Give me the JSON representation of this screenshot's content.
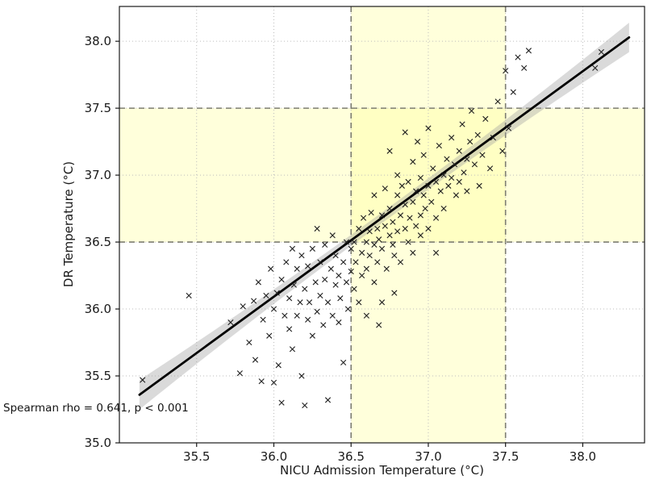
{
  "chart_data": {
    "type": "scatter",
    "title": "",
    "xlabel": "NICU Admission Temperature (°C)",
    "ylabel": "DR Temperature (°C)",
    "annotation": "Spearman rho = 0.641, p < 0.001",
    "spearman_rho": 0.641,
    "p_value": "< 0.001",
    "xlim": [
      35.0,
      38.4
    ],
    "ylim": [
      35.0,
      38.26
    ],
    "xticks": [
      35.5,
      36.0,
      36.5,
      37.0,
      37.5,
      38.0
    ],
    "yticks": [
      35.0,
      35.5,
      36.0,
      36.5,
      37.0,
      37.5,
      38.0
    ],
    "grid": true,
    "normothermia_band": {
      "x": [
        36.5,
        37.5
      ],
      "y": [
        36.5,
        37.5
      ],
      "color": "#ffff99",
      "opacity": 0.35
    },
    "threshold_lines": {
      "x": [
        36.5,
        37.5
      ],
      "y": [
        36.5,
        37.5
      ],
      "color": "#7d7d72"
    },
    "regression": {
      "slope": 0.842,
      "intercept": 5.78,
      "x_range": [
        35.13,
        38.3
      ],
      "line_color": "#000000",
      "ci_color": "#9e9e9e",
      "ci_half_width_center": 0.04,
      "ci_half_width_edge": 0.11
    },
    "marker": {
      "shape": "x",
      "color": "#1f1f1f"
    },
    "points": [
      [
        35.15,
        35.47
      ],
      [
        35.45,
        36.1
      ],
      [
        35.72,
        35.9
      ],
      [
        35.78,
        35.52
      ],
      [
        35.8,
        36.02
      ],
      [
        35.84,
        35.75
      ],
      [
        35.87,
        36.06
      ],
      [
        35.88,
        35.62
      ],
      [
        35.9,
        36.2
      ],
      [
        35.92,
        35.46
      ],
      [
        35.93,
        35.92
      ],
      [
        35.95,
        36.1
      ],
      [
        35.97,
        35.8
      ],
      [
        35.98,
        36.3
      ],
      [
        36.0,
        35.45
      ],
      [
        36.0,
        36.0
      ],
      [
        36.02,
        36.12
      ],
      [
        36.03,
        35.58
      ],
      [
        36.05,
        35.3
      ],
      [
        36.05,
        36.22
      ],
      [
        36.07,
        35.95
      ],
      [
        36.08,
        36.35
      ],
      [
        36.1,
        35.85
      ],
      [
        36.1,
        36.08
      ],
      [
        36.12,
        36.45
      ],
      [
        36.12,
        35.7
      ],
      [
        36.13,
        36.18
      ],
      [
        36.15,
        35.95
      ],
      [
        36.15,
        36.3
      ],
      [
        36.17,
        36.05
      ],
      [
        36.18,
        35.5
      ],
      [
        36.18,
        36.4
      ],
      [
        36.2,
        35.28
      ],
      [
        36.2,
        36.15
      ],
      [
        36.22,
        35.92
      ],
      [
        36.22,
        36.32
      ],
      [
        36.23,
        36.05
      ],
      [
        36.25,
        36.45
      ],
      [
        36.25,
        35.8
      ],
      [
        36.27,
        36.2
      ],
      [
        36.28,
        35.98
      ],
      [
        36.28,
        36.6
      ],
      [
        36.3,
        36.1
      ],
      [
        36.3,
        36.35
      ],
      [
        36.32,
        35.88
      ],
      [
        36.33,
        36.22
      ],
      [
        36.33,
        36.48
      ],
      [
        36.35,
        35.32
      ],
      [
        36.35,
        36.05
      ],
      [
        36.37,
        36.3
      ],
      [
        36.38,
        35.95
      ],
      [
        36.38,
        36.55
      ],
      [
        36.4,
        36.18
      ],
      [
        36.4,
        36.4
      ],
      [
        36.42,
        35.9
      ],
      [
        36.42,
        36.25
      ],
      [
        36.43,
        36.08
      ],
      [
        36.45,
        36.35
      ],
      [
        36.45,
        35.6
      ],
      [
        36.47,
        36.2
      ],
      [
        36.47,
        36.5
      ],
      [
        36.48,
        36.0
      ],
      [
        36.5,
        36.28
      ],
      [
        36.5,
        36.45
      ],
      [
        36.52,
        36.15
      ],
      [
        36.52,
        36.5
      ],
      [
        36.53,
        36.35
      ],
      [
        36.55,
        36.6
      ],
      [
        36.55,
        36.05
      ],
      [
        36.57,
        36.42
      ],
      [
        36.57,
        36.25
      ],
      [
        36.58,
        36.68
      ],
      [
        36.6,
        36.5
      ],
      [
        36.6,
        35.95
      ],
      [
        36.6,
        36.3
      ],
      [
        36.62,
        36.58
      ],
      [
        36.62,
        36.4
      ],
      [
        36.63,
        36.72
      ],
      [
        36.65,
        36.2
      ],
      [
        36.65,
        36.48
      ],
      [
        36.65,
        36.85
      ],
      [
        36.67,
        36.6
      ],
      [
        36.67,
        36.35
      ],
      [
        36.68,
        35.88
      ],
      [
        36.68,
        36.52
      ],
      [
        36.7,
        36.05
      ],
      [
        36.7,
        36.7
      ],
      [
        36.7,
        36.45
      ],
      [
        36.72,
        36.62
      ],
      [
        36.72,
        36.9
      ],
      [
        36.73,
        36.3
      ],
      [
        36.75,
        36.55
      ],
      [
        36.75,
        36.75
      ],
      [
        36.75,
        37.18
      ],
      [
        36.77,
        36.48
      ],
      [
        36.77,
        36.65
      ],
      [
        36.78,
        36.12
      ],
      [
        36.78,
        36.4
      ],
      [
        36.8,
        36.85
      ],
      [
        36.8,
        36.58
      ],
      [
        36.8,
        37.0
      ],
      [
        36.82,
        36.7
      ],
      [
        36.82,
        36.35
      ],
      [
        36.83,
        36.92
      ],
      [
        36.85,
        36.6
      ],
      [
        36.85,
        36.78
      ],
      [
        36.85,
        37.32
      ],
      [
        36.87,
        36.5
      ],
      [
        36.87,
        36.95
      ],
      [
        36.88,
        36.68
      ],
      [
        36.9,
        36.8
      ],
      [
        36.9,
        36.42
      ],
      [
        36.9,
        37.1
      ],
      [
        36.92,
        36.62
      ],
      [
        36.92,
        36.88
      ],
      [
        36.93,
        37.25
      ],
      [
        36.95,
        36.7
      ],
      [
        36.95,
        36.98
      ],
      [
        36.95,
        36.55
      ],
      [
        36.97,
        36.85
      ],
      [
        36.97,
        37.15
      ],
      [
        36.98,
        36.75
      ],
      [
        37.0,
        36.92
      ],
      [
        37.0,
        36.6
      ],
      [
        37.0,
        37.35
      ],
      [
        37.02,
        36.8
      ],
      [
        37.03,
        37.05
      ],
      [
        37.05,
        36.42
      ],
      [
        37.05,
        36.95
      ],
      [
        37.05,
        36.68
      ],
      [
        37.07,
        37.22
      ],
      [
        37.08,
        36.88
      ],
      [
        37.1,
        37.0
      ],
      [
        37.1,
        36.75
      ],
      [
        37.12,
        37.12
      ],
      [
        37.13,
        36.92
      ],
      [
        37.15,
        37.28
      ],
      [
        37.15,
        36.98
      ],
      [
        37.17,
        37.08
      ],
      [
        37.18,
        36.85
      ],
      [
        37.2,
        37.18
      ],
      [
        37.2,
        36.95
      ],
      [
        37.22,
        37.38
      ],
      [
        37.23,
        37.02
      ],
      [
        37.25,
        37.12
      ],
      [
        37.25,
        36.88
      ],
      [
        37.27,
        37.25
      ],
      [
        37.28,
        37.48
      ],
      [
        37.3,
        37.08
      ],
      [
        37.32,
        37.3
      ],
      [
        37.33,
        36.92
      ],
      [
        37.35,
        37.15
      ],
      [
        37.37,
        37.42
      ],
      [
        37.4,
        37.05
      ],
      [
        37.42,
        37.28
      ],
      [
        37.45,
        37.55
      ],
      [
        37.48,
        37.18
      ],
      [
        37.5,
        37.78
      ],
      [
        37.52,
        37.35
      ],
      [
        37.55,
        37.62
      ],
      [
        37.58,
        37.88
      ],
      [
        37.62,
        37.8
      ],
      [
        37.65,
        37.93
      ],
      [
        38.08,
        37.8
      ],
      [
        38.12,
        37.92
      ]
    ]
  }
}
